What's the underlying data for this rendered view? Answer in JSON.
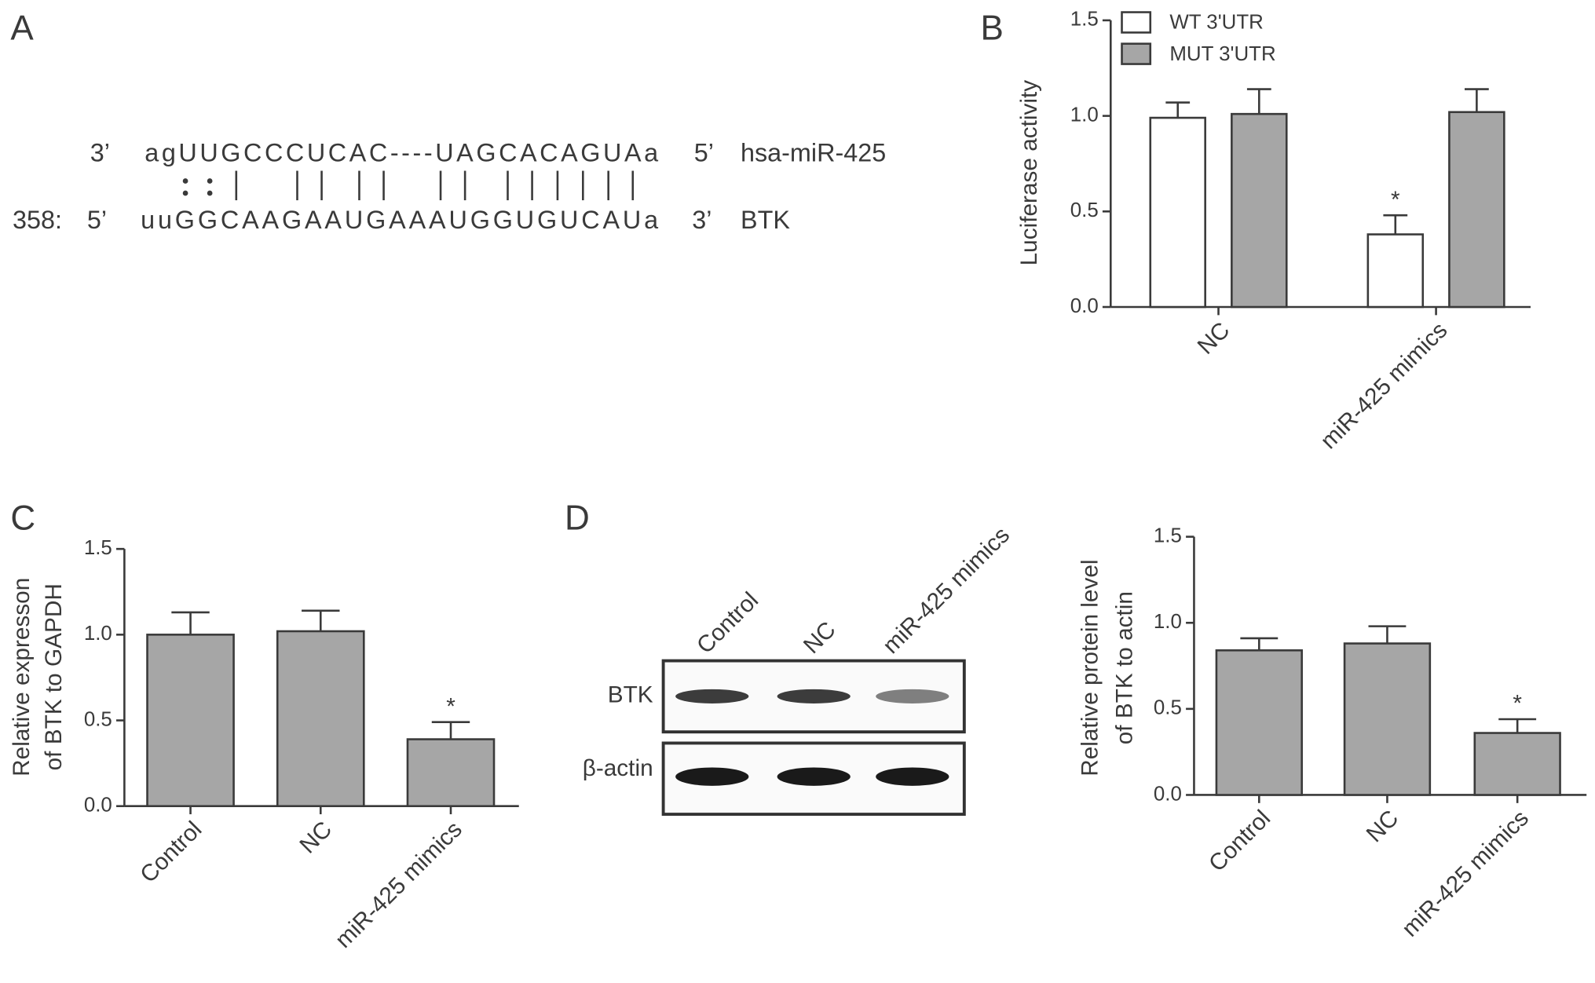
{
  "panel_labels": [
    "A",
    "B",
    "C",
    "D"
  ],
  "alignment": {
    "mirna": {
      "prefix": "3’",
      "sequence": "agUUGCCCUCAC----UAGCACAGUAa",
      "suffix": "5’",
      "name": "hsa-miR-425"
    },
    "target": {
      "position": "358:",
      "prefix": "5’",
      "sequence": "uuGGCAAGAAUGAAAUGGUGUCAUa",
      "suffix": "3’",
      "name": "BTK"
    }
  },
  "blot": {
    "lanes": [
      "Control",
      "NC",
      "miR-425 mimics"
    ],
    "rows": [
      "BTK",
      "β-actin"
    ]
  },
  "chart_data": [
    {
      "type": "bar",
      "ylabel": "Luciferase activity",
      "categories": [
        "NC",
        "miR-425 mimics"
      ],
      "series": [
        {
          "name": "WT 3'UTR",
          "color": "#ffffff",
          "values": [
            0.99,
            0.38
          ],
          "errors": [
            0.08,
            0.1
          ]
        },
        {
          "name": "MUT 3'UTR",
          "color": "#a6a6a6",
          "values": [
            1.01,
            1.02
          ],
          "errors": [
            0.13,
            0.12
          ]
        }
      ],
      "ylim": [
        0,
        1.5
      ],
      "yticks": [
        {
          "value": 0,
          "label": "0.0"
        },
        0.5,
        {
          "value": 1,
          "label": "1.0"
        },
        1.5
      ],
      "legend": "top-left",
      "annotations": [
        {
          "text": "*",
          "category": "miR-425 mimics",
          "series": "WT 3'UTR"
        }
      ]
    },
    {
      "type": "bar",
      "ylabel": [
        "Relative expresson",
        "of BTK to GAPDH"
      ],
      "categories": [
        "Control",
        "NC",
        "miR-425 mimics"
      ],
      "values": [
        1.0,
        1.02,
        0.39
      ],
      "errors": [
        0.13,
        0.12,
        0.1
      ],
      "color": "#a6a6a6",
      "ylim": [
        0,
        1.5
      ],
      "yticks": [
        {
          "value": 0,
          "label": "0.0"
        },
        0.5,
        {
          "value": 1,
          "label": "1.0"
        },
        1.5
      ],
      "annotations": [
        {
          "text": "*",
          "category": "miR-425 mimics"
        }
      ]
    },
    {
      "type": "bar",
      "ylabel": [
        "Relative protein level",
        "of BTK to actin"
      ],
      "categories": [
        "Control",
        "NC",
        "miR-425 mimics"
      ],
      "values": [
        0.84,
        0.88,
        0.36
      ],
      "errors": [
        0.07,
        0.1,
        0.08
      ],
      "color": "#a6a6a6",
      "ylim": [
        0,
        1.5
      ],
      "yticks": [
        {
          "value": 0,
          "label": "0.0"
        },
        0.5,
        {
          "value": 1,
          "label": "1.0"
        },
        1.5
      ],
      "annotations": [
        {
          "text": "*",
          "category": "miR-425 mimics"
        }
      ]
    }
  ]
}
